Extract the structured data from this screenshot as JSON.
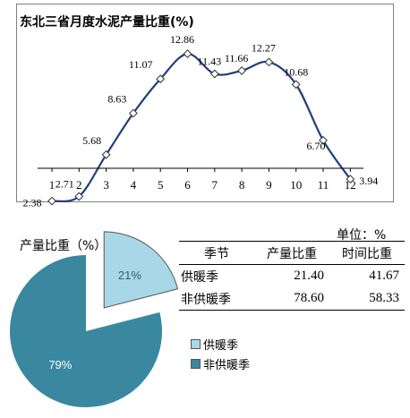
{
  "line_chart": {
    "title": "东北三省月度水泥产量比重(%)"
  },
  "pie_panel": {
    "label": "产量比重（%）",
    "unit_note": "单位：%"
  },
  "table": {
    "headers": [
      "季节",
      "产量比重",
      "时间比重"
    ],
    "rows": [
      {
        "name": "供暖季",
        "output": "21.40",
        "time": "41.67"
      },
      {
        "name": "非供暖季",
        "output": "78.60",
        "time": "58.33"
      }
    ]
  },
  "legend": [
    {
      "label": "供暖季",
      "color": "#a8d8e8"
    },
    {
      "label": "非供暖季",
      "color": "#3a88a0"
    }
  ],
  "chart_data": [
    {
      "type": "line",
      "title": "东北三省月度水泥产量比重(%)",
      "x": [
        1,
        2,
        3,
        4,
        5,
        6,
        7,
        8,
        9,
        10,
        11,
        12
      ],
      "series": [
        {
          "values": [
            2.38,
            2.71,
            5.68,
            8.63,
            11.07,
            12.86,
            11.43,
            11.66,
            12.27,
            10.68,
            6.7,
            3.94
          ],
          "labels": [
            "2.38",
            "2.71",
            "5.68",
            "8.63",
            "11.07",
            "12.86",
            "11.43",
            "11.66",
            "12.27",
            "10.68",
            "6.70",
            "3.94"
          ],
          "color": "#1f3f7a"
        }
      ],
      "ylim": [
        0,
        14
      ],
      "grid": false,
      "marker": "diamond"
    },
    {
      "type": "pie",
      "labels": [
        "供暖季",
        "非供暖季"
      ],
      "values": [
        21,
        79
      ],
      "value_labels": [
        "21%",
        "79%"
      ],
      "colors": [
        "#a8d8e8",
        "#3a88a0"
      ],
      "exploded": "供暖季"
    }
  ]
}
